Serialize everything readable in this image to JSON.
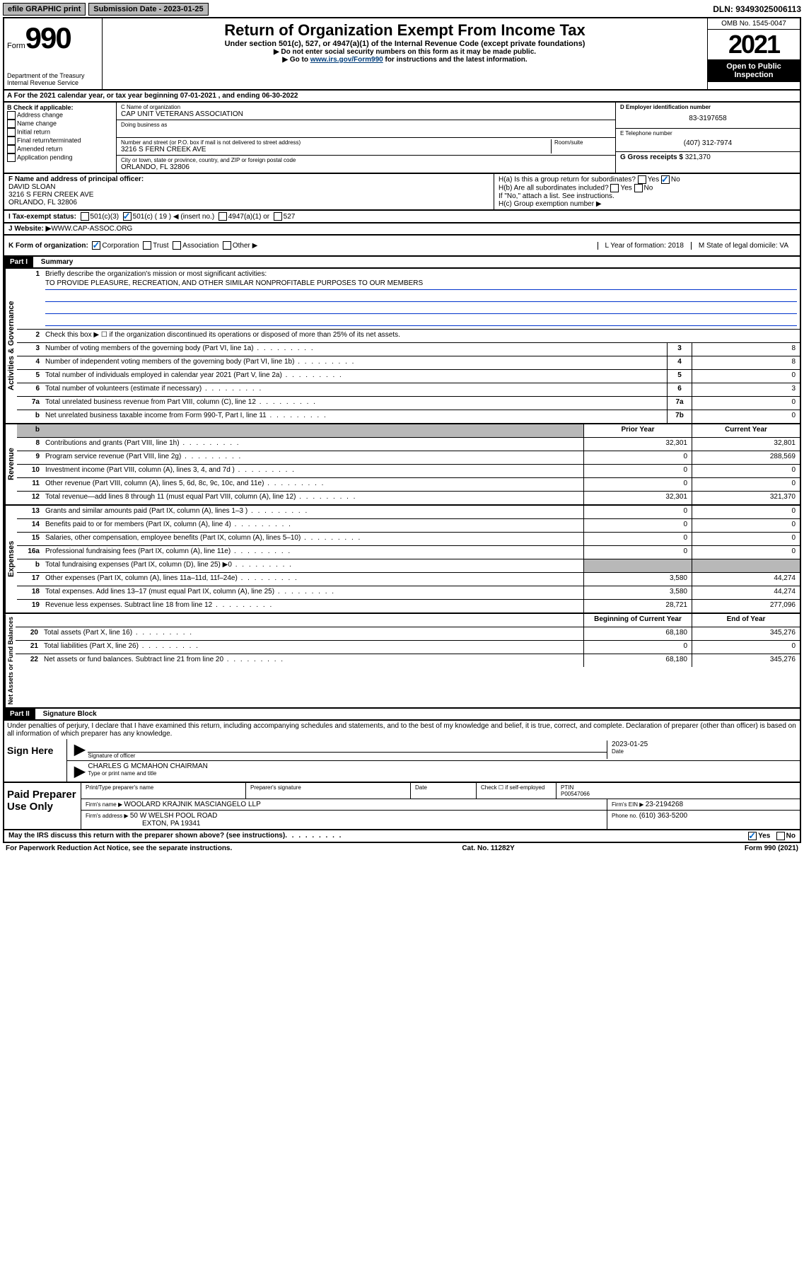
{
  "topbar": {
    "efile": "efile GRAPHIC print",
    "subdate_label": "Submission Date - ",
    "subdate": "2023-01-25",
    "dln_label": "DLN: ",
    "dln": "93493025006113"
  },
  "header": {
    "form_word": "Form",
    "form_num": "990",
    "dept": "Department of the Treasury",
    "irs": "Internal Revenue Service",
    "title": "Return of Organization Exempt From Income Tax",
    "sub1": "Under section 501(c), 527, or 4947(a)(1) of the Internal Revenue Code (except private foundations)",
    "sub2": "▶ Do not enter social security numbers on this form as it may be made public.",
    "sub3_pre": "▶ Go to ",
    "sub3_link": "www.irs.gov/Form990",
    "sub3_post": " for instructions and the latest information.",
    "omb": "OMB No. 1545-0047",
    "year": "2021",
    "open": "Open to Public Inspection"
  },
  "rowA": "A For the 2021 calendar year, or tax year beginning 07-01-2021   , and ending 06-30-2022",
  "colB": {
    "title": "B Check if applicable:",
    "opts": [
      "Address change",
      "Name change",
      "Initial return",
      "Final return/terminated",
      "Amended return",
      "Application pending"
    ]
  },
  "colC": {
    "name_label": "C Name of organization",
    "name": "CAP UNIT VETERANS ASSOCIATION",
    "dba_label": "Doing business as",
    "addr_label": "Number and street (or P.O. box if mail is not delivered to street address)",
    "room_label": "Room/suite",
    "addr": "3216 S FERN CREEK AVE",
    "city_label": "City or town, state or province, country, and ZIP or foreign postal code",
    "city": "ORLANDO, FL  32806"
  },
  "colDE": {
    "d_label": "D Employer identification number",
    "ein": "83-3197658",
    "e_label": "E Telephone number",
    "phone": "(407) 312-7974",
    "g_label": "G Gross receipts $ ",
    "gross": "321,370"
  },
  "rowF": {
    "f_label": "F Name and address of principal officer:",
    "name": "DAVID SLOAN",
    "addr1": "3216 S FERN CREEK AVE",
    "addr2": "ORLANDO, FL  32806",
    "ha": "H(a)  Is this a group return for subordinates?",
    "hb": "H(b)  Are all subordinates included?",
    "yes": "Yes",
    "no": "No",
    "hb_note": "If \"No,\" attach a list. See instructions.",
    "hc": "H(c)  Group exemption number ▶"
  },
  "rowI": {
    "label": "I   Tax-exempt status:",
    "o1": "501(c)(3)",
    "o2": "501(c) ( 19 ) ◀ (insert no.)",
    "o3": "4947(a)(1) or",
    "o4": "527"
  },
  "rowJ": {
    "label": "J   Website: ▶ ",
    "val": "WWW.CAP-ASSOC.ORG"
  },
  "rowK": {
    "label": "K Form of organization:",
    "o1": "Corporation",
    "o2": "Trust",
    "o3": "Association",
    "o4": "Other ▶",
    "L": "L Year of formation: 2018",
    "M": "M State of legal domicile: VA"
  },
  "part1": {
    "header": "Part I",
    "title": "Summary",
    "l1": "Briefly describe the organization's mission or most significant activities:",
    "mission": "TO PROVIDE PLEASURE, RECREATION, AND OTHER SIMILAR NONPROFITABLE PURPOSES TO OUR MEMBERS",
    "l2": "Check this box ▶ ☐  if the organization discontinued its operations or disposed of more than 25% of its net assets.",
    "rows_gov": [
      {
        "n": "3",
        "t": "Number of voting members of the governing body (Part VI, line 1a)",
        "c": "3",
        "v": "8"
      },
      {
        "n": "4",
        "t": "Number of independent voting members of the governing body (Part VI, line 1b)",
        "c": "4",
        "v": "8"
      },
      {
        "n": "5",
        "t": "Total number of individuals employed in calendar year 2021 (Part V, line 2a)",
        "c": "5",
        "v": "0"
      },
      {
        "n": "6",
        "t": "Total number of volunteers (estimate if necessary)",
        "c": "6",
        "v": "3"
      },
      {
        "n": "7a",
        "t": "Total unrelated business revenue from Part VIII, column (C), line 12",
        "c": "7a",
        "v": "0"
      },
      {
        "n": "b",
        "t": "Net unrelated business taxable income from Form 990-T, Part I, line 11",
        "c": "7b",
        "v": "0"
      }
    ],
    "col_prior": "Prior Year",
    "col_current": "Current Year",
    "rows_rev": [
      {
        "n": "8",
        "t": "Contributions and grants (Part VIII, line 1h)",
        "p": "32,301",
        "c": "32,801"
      },
      {
        "n": "9",
        "t": "Program service revenue (Part VIII, line 2g)",
        "p": "0",
        "c": "288,569"
      },
      {
        "n": "10",
        "t": "Investment income (Part VIII, column (A), lines 3, 4, and 7d )",
        "p": "0",
        "c": "0"
      },
      {
        "n": "11",
        "t": "Other revenue (Part VIII, column (A), lines 5, 6d, 8c, 9c, 10c, and 11e)",
        "p": "0",
        "c": "0"
      },
      {
        "n": "12",
        "t": "Total revenue—add lines 8 through 11 (must equal Part VIII, column (A), line 12)",
        "p": "32,301",
        "c": "321,370"
      }
    ],
    "rows_exp": [
      {
        "n": "13",
        "t": "Grants and similar amounts paid (Part IX, column (A), lines 1–3 )",
        "p": "0",
        "c": "0"
      },
      {
        "n": "14",
        "t": "Benefits paid to or for members (Part IX, column (A), line 4)",
        "p": "0",
        "c": "0"
      },
      {
        "n": "15",
        "t": "Salaries, other compensation, employee benefits (Part IX, column (A), lines 5–10)",
        "p": "0",
        "c": "0"
      },
      {
        "n": "16a",
        "t": "Professional fundraising fees (Part IX, column (A), line 11e)",
        "p": "0",
        "c": "0"
      },
      {
        "n": "b",
        "t": "Total fundraising expenses (Part IX, column (D), line 25) ▶0",
        "p": "shaded",
        "c": "shaded"
      },
      {
        "n": "17",
        "t": "Other expenses (Part IX, column (A), lines 11a–11d, 11f–24e)",
        "p": "3,580",
        "c": "44,274"
      },
      {
        "n": "18",
        "t": "Total expenses. Add lines 13–17 (must equal Part IX, column (A), line 25)",
        "p": "3,580",
        "c": "44,274"
      },
      {
        "n": "19",
        "t": "Revenue less expenses. Subtract line 18 from line 12",
        "p": "28,721",
        "c": "277,096"
      }
    ],
    "col_begin": "Beginning of Current Year",
    "col_end": "End of Year",
    "rows_net": [
      {
        "n": "20",
        "t": "Total assets (Part X, line 16)",
        "p": "68,180",
        "c": "345,276"
      },
      {
        "n": "21",
        "t": "Total liabilities (Part X, line 26)",
        "p": "0",
        "c": "0"
      },
      {
        "n": "22",
        "t": "Net assets or fund balances. Subtract line 21 from line 20",
        "p": "68,180",
        "c": "345,276"
      }
    ],
    "vlab_gov": "Activities & Governance",
    "vlab_rev": "Revenue",
    "vlab_exp": "Expenses",
    "vlab_net": "Net Assets or Fund Balances"
  },
  "part2": {
    "header": "Part II",
    "title": "Signature Block",
    "decl": "Under penalties of perjury, I declare that I have examined this return, including accompanying schedules and statements, and to the best of my knowledge and belief, it is true, correct, and complete. Declaration of preparer (other than officer) is based on all information of which preparer has any knowledge.",
    "sign_here": "Sign Here",
    "sig_officer": "Signature of officer",
    "sig_date": "Date",
    "sig_date_val": "2023-01-25",
    "officer": "CHARLES G MCMAHON  CHAIRMAN",
    "type_name": "Type or print name and title",
    "paid": "Paid Preparer Use Only",
    "h1": "Print/Type preparer's name",
    "h2": "Preparer's signature",
    "h3": "Date",
    "h4": "Check ☐ if self-employed",
    "h5_label": "PTIN",
    "h5": "P00547066",
    "firm_name_label": "Firm's name    ▶ ",
    "firm_name": "WOOLARD KRAJNIK MASCIANGELO LLP",
    "firm_ein_label": "Firm's EIN ▶ ",
    "firm_ein": "23-2194268",
    "firm_addr_label": "Firm's address ▶ ",
    "firm_addr1": "50 W WELSH POOL ROAD",
    "firm_addr2": "EXTON, PA  19341",
    "phone_label": "Phone no. ",
    "phone": "(610) 363-5200"
  },
  "footer": {
    "q": "May the IRS discuss this return with the preparer shown above? (see instructions)",
    "yes": "Yes",
    "no": "No",
    "pra": "For Paperwork Reduction Act Notice, see the separate instructions.",
    "cat": "Cat. No. 11282Y",
    "form": "Form 990 (2021)"
  }
}
